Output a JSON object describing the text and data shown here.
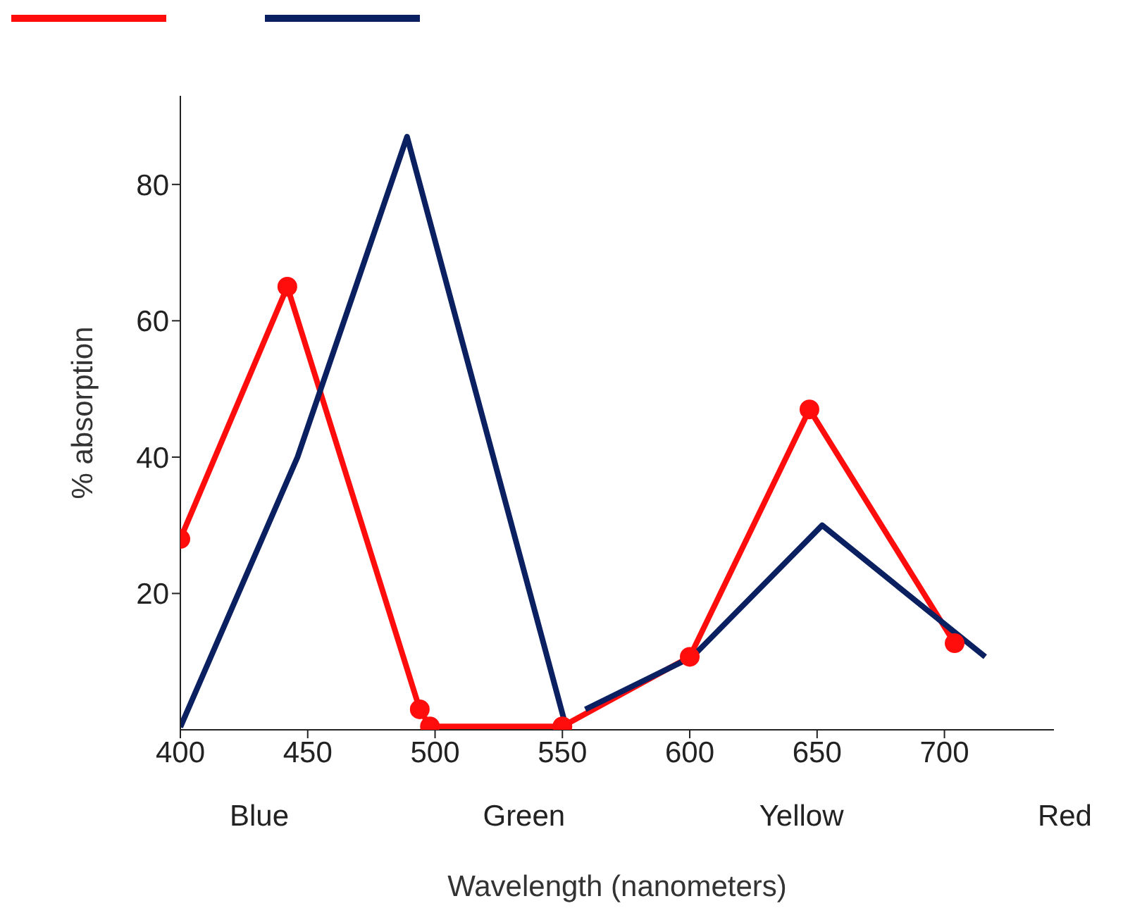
{
  "chart_data": {
    "type": "line",
    "xlabel": "Wavelength (nanometers)",
    "ylabel": "% absorption",
    "xlim": [
      400,
      743
    ],
    "xticks": [
      400,
      450,
      500,
      550,
      600,
      650,
      700
    ],
    "ylim": [
      0,
      93
    ],
    "yticks": [
      20,
      40,
      60,
      80
    ],
    "grid": false,
    "line_style": "solid",
    "series": [
      {
        "color": "#ff0d0d",
        "marker": "circle",
        "x": [
          400,
          442,
          494,
          498,
          550,
          600,
          647,
          704
        ],
        "values": [
          28,
          65,
          3,
          0.5,
          0.5,
          10.7,
          47,
          12.7
        ]
      },
      {
        "color": "#0b2060",
        "marker": "none",
        "x": [
          400,
          446,
          489,
          551,
          555,
          559,
          601,
          652,
          716
        ],
        "values": [
          0.4,
          40,
          87,
          1,
          null,
          3,
          10.7,
          30,
          10.7
        ]
      }
    ],
    "annotations": [
      "Blue",
      "Green",
      "Yellow",
      "Red"
    ]
  }
}
